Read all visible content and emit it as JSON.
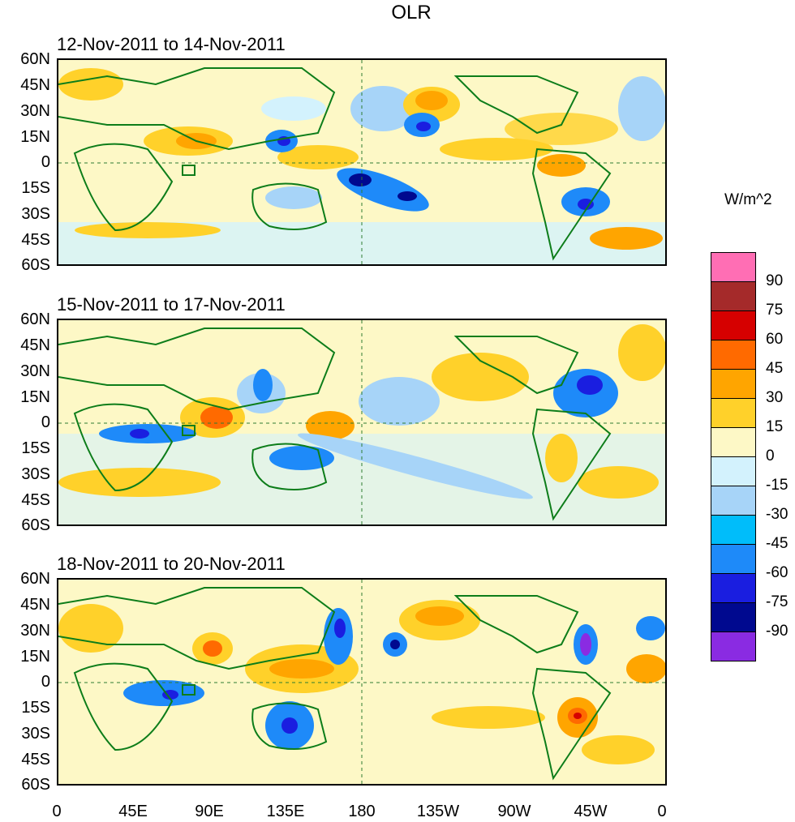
{
  "title": "OLR",
  "units": "W/m^2",
  "panels": [
    {
      "title": "12-Nov-2011 to 14-Nov-2011"
    },
    {
      "title": "15-Nov-2011 to 17-Nov-2011"
    },
    {
      "title": "18-Nov-2011 to 20-Nov-2011"
    }
  ],
  "lat_labels": [
    "60N",
    "45N",
    "30N",
    "15N",
    "0",
    "15S",
    "30S",
    "45S",
    "60S"
  ],
  "lon_labels": [
    "0",
    "45E",
    "90E",
    "135E",
    "180",
    "135W",
    "90W",
    "45W",
    "0"
  ],
  "colorbar": {
    "labels": [
      "90",
      "75",
      "60",
      "45",
      "30",
      "15",
      "0",
      "-15",
      "-30",
      "-45",
      "-60",
      "-75",
      "-90"
    ],
    "colors": [
      "#ff6eb4",
      "#a52a2a",
      "#d60000",
      "#ff6a00",
      "#ffa500",
      "#ffd12a",
      "#fdf8c6",
      "#d3f2fd",
      "#a7d4f8",
      "#00bdfa",
      "#1e8af9",
      "#1a1ee0",
      "#00098f",
      "#8a2be2"
    ]
  },
  "map_colors": {
    "land_outline": "#0d7d1a",
    "reference_line": "#2e7d32"
  }
}
